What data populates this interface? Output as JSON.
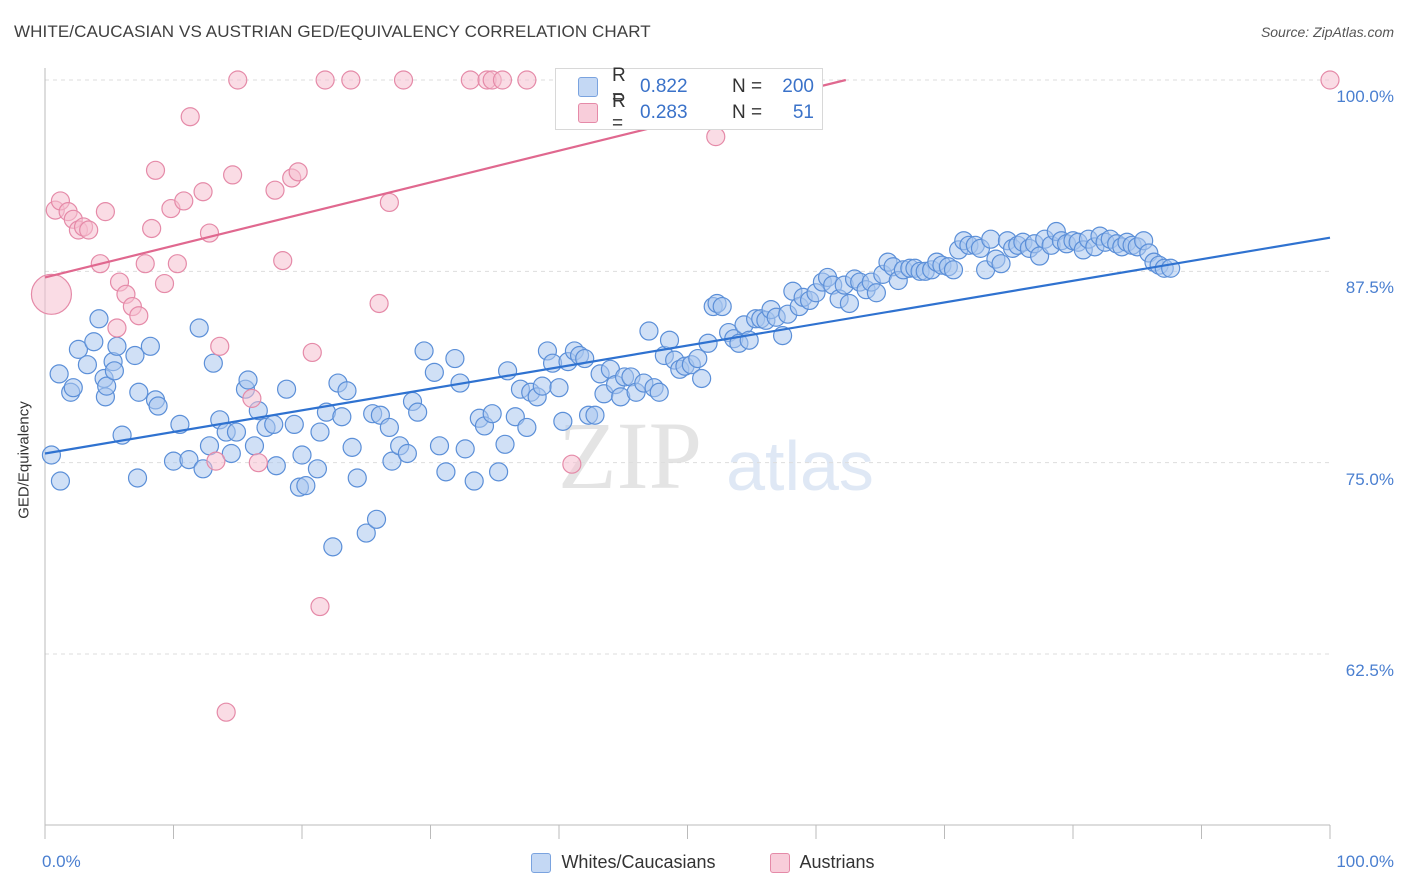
{
  "header": {
    "title": "WHITE/CAUCASIAN VS AUSTRIAN GED/EQUIVALENCY CORRELATION CHART",
    "source": "Source: ZipAtlas.com"
  },
  "watermark": {
    "zip": "ZIP",
    "atlas": "atlas"
  },
  "colors": {
    "blue_fill": "#a9c6ee",
    "blue_stroke": "#5b8fd8",
    "blue_line": "#2f72d0",
    "pink_fill": "#f6bfd0",
    "pink_stroke": "#e58aa8",
    "pink_line": "#e0688f",
    "tick_text": "#4a7fd0",
    "grid": "#dddddd"
  },
  "legend_top": [
    {
      "r_label": "R =",
      "r_value": "0.822",
      "n_label": "N =",
      "n_value": "200"
    },
    {
      "r_label": "R =",
      "r_value": "0.283",
      "n_label": "N =",
      "n_value": "51"
    }
  ],
  "legend_bottom": [
    {
      "label": "Whites/Caucasians"
    },
    {
      "label": "Austrians"
    }
  ],
  "chart_data": {
    "type": "scatter",
    "title": "WHITE/CAUCASIAN VS AUSTRIAN GED/EQUIVALENCY CORRELATION CHART",
    "xlabel": "",
    "ylabel": "GED/Equivalency",
    "xlim": [
      0,
      100
    ],
    "ylim": [
      50,
      101.5
    ],
    "x_tick_labels": [
      "0.0%",
      "100.0%"
    ],
    "y_ticks": [
      62.5,
      75.0,
      87.5,
      100.0
    ],
    "y_tick_labels": [
      "62.5%",
      "75.0%",
      "87.5%",
      "100.0%"
    ],
    "grid": true,
    "legend": "top-center",
    "series": [
      {
        "name": "Whites/Caucasians",
        "trend": {
          "x0": 0,
          "y0": 75.6,
          "x1": 100,
          "y1": 89.7
        },
        "points": [
          [
            0.5,
            75.5
          ],
          [
            1.1,
            80.8
          ],
          [
            1.2,
            73.8
          ],
          [
            2.0,
            79.6
          ],
          [
            2.2,
            79.9
          ],
          [
            2.6,
            82.4
          ],
          [
            3.3,
            81.4
          ],
          [
            3.8,
            82.9
          ],
          [
            4.2,
            84.4
          ],
          [
            4.6,
            80.5
          ],
          [
            4.7,
            79.3
          ],
          [
            4.8,
            80.0
          ],
          [
            5.3,
            81.6
          ],
          [
            5.4,
            81.0
          ],
          [
            5.6,
            82.6
          ],
          [
            6.0,
            76.8
          ],
          [
            7.0,
            82.0
          ],
          [
            7.2,
            74.0
          ],
          [
            7.3,
            79.6
          ],
          [
            8.2,
            82.6
          ],
          [
            8.6,
            79.1
          ],
          [
            8.8,
            78.7
          ],
          [
            10.0,
            75.1
          ],
          [
            10.5,
            77.5
          ],
          [
            11.2,
            75.2
          ],
          [
            12.0,
            83.8
          ],
          [
            12.3,
            74.6
          ],
          [
            12.8,
            76.1
          ],
          [
            13.1,
            81.5
          ],
          [
            13.6,
            77.8
          ],
          [
            14.1,
            77.0
          ],
          [
            14.5,
            75.6
          ],
          [
            14.9,
            77.0
          ],
          [
            15.6,
            79.8
          ],
          [
            15.8,
            80.4
          ],
          [
            16.3,
            76.1
          ],
          [
            16.6,
            78.4
          ],
          [
            17.2,
            77.3
          ],
          [
            17.8,
            77.5
          ],
          [
            18.0,
            74.8
          ],
          [
            18.8,
            79.8
          ],
          [
            19.4,
            77.5
          ],
          [
            19.8,
            73.4
          ],
          [
            20.0,
            75.5
          ],
          [
            20.3,
            73.5
          ],
          [
            21.2,
            74.6
          ],
          [
            21.4,
            77.0
          ],
          [
            21.9,
            78.3
          ],
          [
            22.4,
            69.5
          ],
          [
            22.8,
            80.2
          ],
          [
            23.1,
            78.0
          ],
          [
            23.5,
            79.7
          ],
          [
            23.9,
            76.0
          ],
          [
            24.3,
            74.0
          ],
          [
            25.0,
            70.4
          ],
          [
            25.5,
            78.2
          ],
          [
            25.8,
            71.3
          ],
          [
            26.1,
            78.1
          ],
          [
            26.8,
            77.3
          ],
          [
            27.0,
            75.1
          ],
          [
            27.6,
            76.1
          ],
          [
            28.2,
            75.6
          ],
          [
            28.6,
            79.0
          ],
          [
            29.0,
            78.3
          ],
          [
            29.5,
            82.3
          ],
          [
            30.3,
            80.9
          ],
          [
            30.7,
            76.1
          ],
          [
            31.2,
            74.4
          ],
          [
            31.9,
            81.8
          ],
          [
            32.3,
            80.2
          ],
          [
            32.7,
            75.9
          ],
          [
            33.4,
            73.8
          ],
          [
            33.8,
            77.9
          ],
          [
            34.2,
            77.4
          ],
          [
            34.8,
            78.2
          ],
          [
            35.3,
            74.4
          ],
          [
            35.8,
            76.2
          ],
          [
            36.0,
            81.0
          ],
          [
            36.6,
            78.0
          ],
          [
            37.0,
            79.8
          ],
          [
            37.5,
            77.3
          ],
          [
            37.8,
            79.6
          ],
          [
            38.3,
            79.3
          ],
          [
            38.7,
            80.0
          ],
          [
            39.1,
            82.3
          ],
          [
            39.5,
            81.5
          ],
          [
            40.0,
            79.9
          ],
          [
            40.3,
            77.7
          ],
          [
            40.7,
            81.6
          ],
          [
            41.2,
            82.3
          ],
          [
            41.6,
            82.0
          ],
          [
            42.0,
            81.8
          ],
          [
            42.3,
            78.1
          ],
          [
            42.8,
            78.1
          ],
          [
            43.2,
            80.8
          ],
          [
            43.5,
            79.5
          ],
          [
            44.0,
            81.1
          ],
          [
            44.4,
            80.1
          ],
          [
            44.8,
            79.3
          ],
          [
            45.1,
            80.6
          ],
          [
            45.6,
            80.6
          ],
          [
            46.0,
            79.6
          ],
          [
            46.6,
            80.2
          ],
          [
            47.0,
            83.6
          ],
          [
            47.4,
            79.9
          ],
          [
            47.8,
            79.6
          ],
          [
            48.2,
            82.0
          ],
          [
            48.6,
            83.0
          ],
          [
            49.0,
            81.7
          ],
          [
            49.4,
            81.1
          ],
          [
            49.8,
            81.3
          ],
          [
            50.3,
            81.4
          ],
          [
            50.8,
            81.8
          ],
          [
            51.1,
            80.5
          ],
          [
            51.6,
            82.8
          ],
          [
            52.0,
            85.2
          ],
          [
            52.3,
            85.4
          ],
          [
            52.7,
            85.2
          ],
          [
            53.2,
            83.5
          ],
          [
            53.6,
            83.1
          ],
          [
            54.0,
            82.8
          ],
          [
            54.4,
            84.0
          ],
          [
            54.8,
            83.0
          ],
          [
            55.3,
            84.4
          ],
          [
            55.7,
            84.4
          ],
          [
            56.1,
            84.3
          ],
          [
            56.5,
            85.0
          ],
          [
            56.9,
            84.5
          ],
          [
            57.4,
            83.3
          ],
          [
            57.8,
            84.7
          ],
          [
            58.2,
            86.2
          ],
          [
            58.7,
            85.2
          ],
          [
            59.0,
            85.8
          ],
          [
            59.5,
            85.6
          ],
          [
            60.0,
            86.1
          ],
          [
            60.5,
            86.8
          ],
          [
            60.9,
            87.1
          ],
          [
            61.3,
            86.6
          ],
          [
            61.8,
            85.7
          ],
          [
            62.2,
            86.6
          ],
          [
            62.6,
            85.4
          ],
          [
            63.0,
            87.0
          ],
          [
            63.4,
            86.8
          ],
          [
            63.9,
            86.3
          ],
          [
            64.3,
            86.8
          ],
          [
            64.7,
            86.1
          ],
          [
            65.2,
            87.3
          ],
          [
            65.6,
            88.1
          ],
          [
            66.0,
            87.8
          ],
          [
            66.4,
            86.9
          ],
          [
            66.8,
            87.6
          ],
          [
            67.3,
            87.7
          ],
          [
            67.7,
            87.7
          ],
          [
            68.1,
            87.5
          ],
          [
            68.5,
            87.5
          ],
          [
            69.0,
            87.6
          ],
          [
            69.4,
            88.1
          ],
          [
            69.8,
            87.9
          ],
          [
            70.3,
            87.8
          ],
          [
            70.7,
            87.6
          ],
          [
            71.1,
            88.9
          ],
          [
            71.5,
            89.5
          ],
          [
            71.9,
            89.2
          ],
          [
            72.4,
            89.2
          ],
          [
            72.8,
            89.0
          ],
          [
            73.2,
            87.6
          ],
          [
            73.6,
            89.6
          ],
          [
            74.0,
            88.3
          ],
          [
            74.4,
            88.0
          ],
          [
            74.9,
            89.5
          ],
          [
            75.3,
            89.0
          ],
          [
            75.7,
            89.2
          ],
          [
            76.1,
            89.4
          ],
          [
            76.6,
            89.0
          ],
          [
            77.0,
            89.3
          ],
          [
            77.4,
            88.5
          ],
          [
            77.8,
            89.6
          ],
          [
            78.3,
            89.2
          ],
          [
            78.7,
            90.1
          ],
          [
            79.1,
            89.5
          ],
          [
            79.5,
            89.3
          ],
          [
            80.0,
            89.5
          ],
          [
            80.4,
            89.4
          ],
          [
            80.8,
            88.9
          ],
          [
            81.2,
            89.6
          ],
          [
            81.7,
            89.1
          ],
          [
            82.1,
            89.8
          ],
          [
            82.5,
            89.4
          ],
          [
            82.9,
            89.6
          ],
          [
            83.4,
            89.3
          ],
          [
            83.8,
            89.1
          ],
          [
            84.2,
            89.4
          ],
          [
            84.6,
            89.2
          ],
          [
            85.0,
            89.1
          ],
          [
            85.5,
            89.5
          ],
          [
            85.9,
            88.7
          ],
          [
            86.3,
            88.1
          ],
          [
            86.7,
            87.9
          ],
          [
            87.1,
            87.7
          ],
          [
            87.6,
            87.7
          ]
        ]
      },
      {
        "name": "Austrians",
        "trend": {
          "x0": 0,
          "y0": 87.1,
          "x1": 100,
          "y1": 107.8
        },
        "points": [
          [
            0.5,
            86.0
          ],
          [
            0.8,
            91.5
          ],
          [
            1.2,
            92.1
          ],
          [
            1.8,
            91.4
          ],
          [
            2.2,
            90.9
          ],
          [
            2.6,
            90.2
          ],
          [
            3.0,
            90.4
          ],
          [
            3.4,
            90.2
          ],
          [
            4.3,
            88.0
          ],
          [
            4.7,
            91.4
          ],
          [
            5.6,
            83.8
          ],
          [
            5.8,
            86.8
          ],
          [
            6.3,
            86.0
          ],
          [
            6.8,
            85.2
          ],
          [
            7.3,
            84.6
          ],
          [
            7.8,
            88.0
          ],
          [
            8.3,
            90.3
          ],
          [
            8.6,
            94.1
          ],
          [
            9.3,
            86.7
          ],
          [
            9.8,
            91.6
          ],
          [
            10.3,
            88.0
          ],
          [
            10.8,
            92.1
          ],
          [
            11.3,
            97.6
          ],
          [
            12.3,
            92.7
          ],
          [
            12.8,
            90.0
          ],
          [
            13.3,
            75.1
          ],
          [
            13.6,
            82.6
          ],
          [
            14.1,
            58.7
          ],
          [
            14.6,
            93.8
          ],
          [
            15.0,
            100.0
          ],
          [
            16.1,
            79.2
          ],
          [
            16.6,
            75.0
          ],
          [
            17.9,
            92.8
          ],
          [
            18.5,
            88.2
          ],
          [
            19.2,
            93.6
          ],
          [
            19.7,
            94.0
          ],
          [
            20.8,
            82.2
          ],
          [
            21.4,
            65.6
          ],
          [
            21.8,
            100.0
          ],
          [
            23.8,
            100.0
          ],
          [
            26.0,
            85.4
          ],
          [
            26.8,
            92.0
          ],
          [
            27.9,
            100.0
          ],
          [
            33.1,
            100.0
          ],
          [
            34.4,
            100.0
          ],
          [
            34.8,
            100.0
          ],
          [
            35.6,
            100.0
          ],
          [
            37.5,
            100.0
          ],
          [
            41.0,
            74.9
          ],
          [
            52.2,
            96.3
          ],
          [
            100.0,
            100.0
          ]
        ]
      }
    ]
  }
}
